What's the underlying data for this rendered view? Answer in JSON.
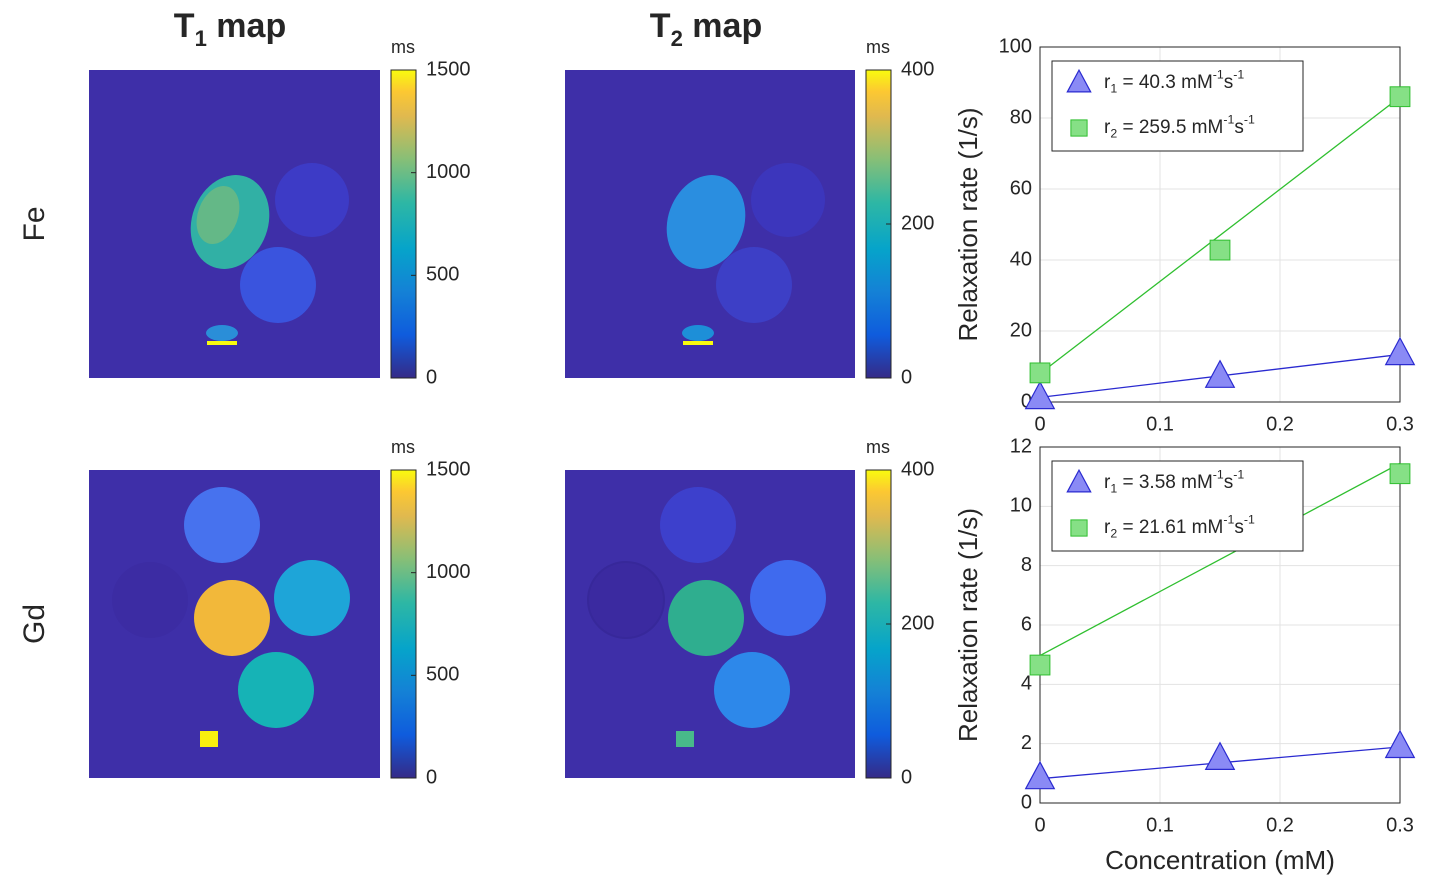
{
  "column_titles": [
    [
      {
        "text": "T"
      },
      {
        "sub": "1"
      },
      {
        "text": " map"
      }
    ],
    [
      {
        "text": "T"
      },
      {
        "sub": "2"
      },
      {
        "text": " map"
      }
    ]
  ],
  "row_labels": [
    "Fe",
    "Gd"
  ],
  "colorbars": [
    {
      "unit": "ms",
      "lim": [
        0,
        1500
      ],
      "ticks": [
        0,
        500,
        1000,
        1500
      ]
    },
    {
      "unit": "ms",
      "lim": [
        0,
        400
      ],
      "ticks": [
        0,
        200,
        400
      ]
    },
    {
      "unit": "ms",
      "lim": [
        0,
        1500
      ],
      "ticks": [
        0,
        500,
        1000,
        1500
      ]
    },
    {
      "unit": "ms",
      "lim": [
        0,
        400
      ],
      "ticks": [
        0,
        200,
        400
      ]
    }
  ],
  "chart_data": [
    {
      "type": "scatter",
      "y_label": "Relaxation rate (1/s)",
      "xlim": [
        0,
        0.3
      ],
      "xticks": [
        0,
        0.1,
        0.2,
        0.3
      ],
      "ylim": [
        0,
        100
      ],
      "yticks": [
        0,
        20,
        40,
        60,
        80,
        100
      ],
      "grid": true,
      "legend": "upper left",
      "series": [
        {
          "name": [
            {
              "text": "r"
            },
            {
              "sub": "1"
            },
            {
              "text": " = 40.3 mM"
            },
            {
              "sup": "-1"
            },
            {
              "text": "s"
            },
            {
              "sup": "-1"
            }
          ],
          "marker": "triangle",
          "color": "#2a2ad0",
          "fill": "#8a8af5",
          "x": [
            0,
            0.15,
            0.3
          ],
          "values": [
            1.2,
            7.2,
            13.6
          ],
          "fit": {
            "x": [
              0,
              0.3
            ],
            "values": [
              1.3,
              13.4
            ]
          }
        },
        {
          "name": [
            {
              "text": "r"
            },
            {
              "sub": "2"
            },
            {
              "text": " = 259.5 mM"
            },
            {
              "sup": "-1"
            },
            {
              "text": "s"
            },
            {
              "sup": "-1"
            }
          ],
          "marker": "square",
          "color": "#2fbf2f",
          "fill": "#86e086",
          "x": [
            0,
            0.15,
            0.3
          ],
          "values": [
            8.2,
            42.8,
            86
          ],
          "fit": {
            "x": [
              0,
              0.3
            ],
            "values": [
              8,
              85.9
            ]
          }
        }
      ]
    },
    {
      "type": "scatter",
      "y_label": "Relaxation rate (1/s)",
      "x_label": "Concentration (mM)",
      "xlim": [
        0,
        0.3
      ],
      "xticks": [
        0,
        0.1,
        0.2,
        0.3
      ],
      "ylim": [
        0,
        12
      ],
      "yticks": [
        0,
        2,
        4,
        6,
        8,
        10,
        12
      ],
      "grid": true,
      "legend": "upper left",
      "series": [
        {
          "name": [
            {
              "text": "r"
            },
            {
              "sub": "1"
            },
            {
              "text": " = 3.58 mM"
            },
            {
              "sup": "-1"
            },
            {
              "text": "s"
            },
            {
              "sup": "-1"
            }
          ],
          "marker": "triangle",
          "color": "#2a2ad0",
          "fill": "#8a8af5",
          "x": [
            0,
            0.15,
            0.3
          ],
          "values": [
            0.85,
            1.5,
            1.9
          ],
          "fit": {
            "x": [
              0,
              0.3
            ],
            "values": [
              0.82,
              1.89
            ]
          }
        },
        {
          "name": [
            {
              "text": "r"
            },
            {
              "sub": "2"
            },
            {
              "text": " = 21.61 mM"
            },
            {
              "sup": "-1"
            },
            {
              "text": "s"
            },
            {
              "sup": "-1"
            }
          ],
          "marker": "square",
          "color": "#2fbf2f",
          "fill": "#86e086",
          "x": [
            0,
            0.15,
            0.3
          ],
          "values": [
            4.65,
            null,
            11.1
          ],
          "fit": {
            "x": [
              0,
              0.3
            ],
            "values": [
              4.97,
              11.45
            ]
          }
        }
      ]
    }
  ]
}
